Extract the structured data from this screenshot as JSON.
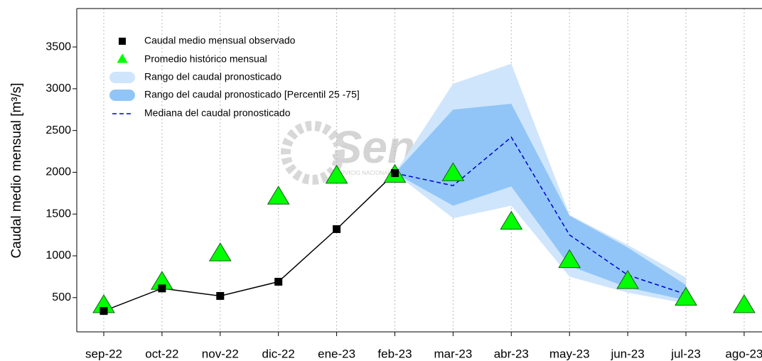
{
  "chart_data": {
    "type": "line",
    "ylabel": "Caudal medio mensual  [m³/s]",
    "watermark": "Senamhi",
    "watermark_subtitle": "SERVICIO NACIONAL DE METEOROLOGÍA E HIDROLOGÍA DEL PERÚ",
    "categories": [
      "sep-22",
      "oct-22",
      "nov-22",
      "dic-22",
      "ene-23",
      "feb-23",
      "mar-23",
      "abr-23",
      "may-23",
      "jun-23",
      "jul-23",
      "ago-23"
    ],
    "ylim": [
      90,
      3960
    ],
    "yticks": [
      500,
      1000,
      1500,
      2000,
      2500,
      3000,
      3500
    ],
    "grid": true,
    "legend": "upper left",
    "bands": [
      {
        "name": "Rango del caudal pronosticado",
        "color": "#cfe5fb",
        "low": [
          null,
          null,
          null,
          null,
          null,
          1990,
          1450,
          1600,
          750,
          560,
          430,
          null
        ],
        "high": [
          null,
          null,
          null,
          null,
          null,
          1990,
          3060,
          3300,
          1490,
          1130,
          740,
          null
        ]
      },
      {
        "name": "Rango del caudal pronosticado [Percentil 25 -75]",
        "color": "#91c5f7",
        "low": [
          null,
          null,
          null,
          null,
          null,
          1990,
          1600,
          1830,
          880,
          620,
          470,
          null
        ],
        "high": [
          null,
          null,
          null,
          null,
          null,
          1990,
          2750,
          2820,
          1480,
          1100,
          650,
          null
        ]
      }
    ],
    "series": [
      {
        "name": "Caudal medio mensual observado",
        "color": "#000000",
        "marker": "square",
        "values": [
          340,
          610,
          520,
          690,
          1320,
          1990,
          null,
          null,
          null,
          null,
          null,
          null
        ]
      },
      {
        "name": "Promedio histórico mensual",
        "color": "#00ff00",
        "marker": "triangle",
        "values": [
          400,
          680,
          1020,
          1700,
          1950,
          1960,
          1980,
          1400,
          940,
          690,
          490,
          400
        ]
      },
      {
        "name": "Mediana del caudal pronosticado",
        "color": "#0000cc",
        "marker": "dash",
        "values": [
          null,
          null,
          null,
          null,
          null,
          1990,
          1840,
          2420,
          1250,
          770,
          540,
          null
        ]
      }
    ]
  }
}
